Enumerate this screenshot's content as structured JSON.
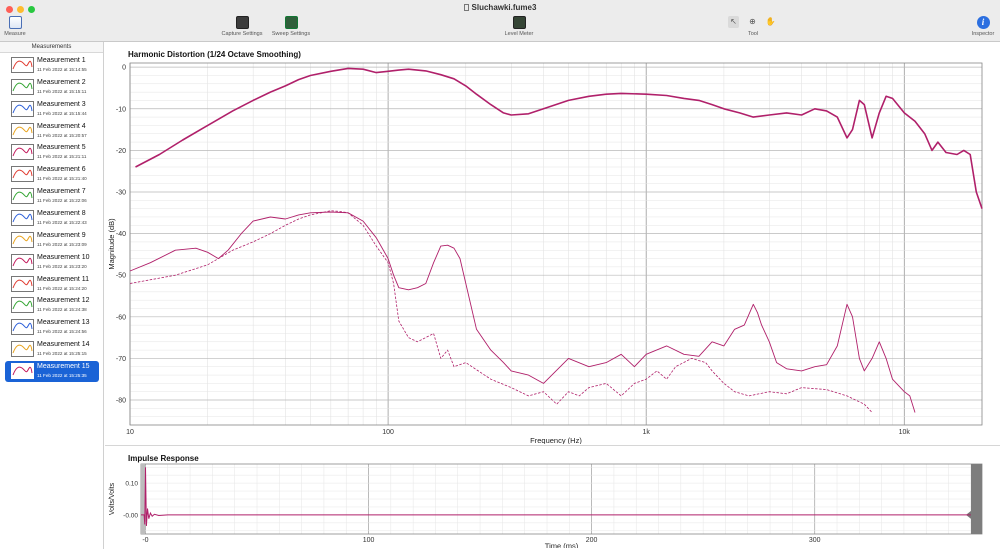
{
  "window": {
    "title": "Sluchawki.fume3"
  },
  "toolbar": {
    "measure_label": "Measure",
    "capture_settings_label": "Capture Settings",
    "sweep_settings_label": "Sweep Settings",
    "level_meter_label": "Level Meter",
    "tool_label": "Tool",
    "inspector_label": "Inspector",
    "colors": {
      "close": "#fe5f57",
      "minimize": "#febc2e",
      "zoom": "#28c840",
      "accent": "#1a63d6"
    }
  },
  "sidebar": {
    "header": "Measurements",
    "items": [
      {
        "name": "Measurement 1",
        "date": "11 Feb 2022 at 15:14:55",
        "color": "#e03a2f"
      },
      {
        "name": "Measurement 2",
        "date": "11 Feb 2022 at 15:15:11",
        "color": "#33a532"
      },
      {
        "name": "Measurement 3",
        "date": "11 Feb 2022 at 15:15:44",
        "color": "#2b5ed8"
      },
      {
        "name": "Measurement 4",
        "date": "11 Feb 2022 at 15:20:57",
        "color": "#e8a21b"
      },
      {
        "name": "Measurement 5",
        "date": "11 Feb 2022 at 15:21:11",
        "color": "#c2185b"
      },
      {
        "name": "Measurement 6",
        "date": "11 Feb 2022 at 15:21:40",
        "color": "#e03a2f"
      },
      {
        "name": "Measurement 7",
        "date": "11 Feb 2022 at 15:22:06",
        "color": "#33a532"
      },
      {
        "name": "Measurement 8",
        "date": "11 Feb 2022 at 15:22:43",
        "color": "#2b5ed8"
      },
      {
        "name": "Measurement 9",
        "date": "11 Feb 2022 at 15:23:09",
        "color": "#e8a21b"
      },
      {
        "name": "Measurement 10",
        "date": "11 Feb 2022 at 15:23:20",
        "color": "#c2185b"
      },
      {
        "name": "Measurement 11",
        "date": "11 Feb 2022 at 15:24:20",
        "color": "#e03a2f"
      },
      {
        "name": "Measurement 12",
        "date": "11 Feb 2022 at 15:24:38",
        "color": "#33a532"
      },
      {
        "name": "Measurement 13",
        "date": "11 Feb 2022 at 15:24:56",
        "color": "#2b5ed8"
      },
      {
        "name": "Measurement 14",
        "date": "11 Feb 2022 at 15:25:15",
        "color": "#e8a21b"
      },
      {
        "name": "Measurement 15",
        "date": "11 Feb 2022 at 15:25:35",
        "color": "#c2185b",
        "selected": true
      }
    ]
  },
  "harmonic": {
    "title": "Harmonic Distortion (1/24 Octave Smoothing)",
    "xlabel": "Frequency (Hz)",
    "ylabel": "Magnitude (dB)",
    "curve_color": "#b0206a"
  },
  "impulse": {
    "title": "Impulse Response",
    "xlabel": "Time (ms)",
    "ylabel": "Volts/Volts"
  },
  "chart_data": [
    {
      "type": "line",
      "title": "Harmonic Distortion (1/24 Octave Smoothing)",
      "xlabel": "Frequency (Hz)",
      "ylabel": "Magnitude (dB)",
      "xscale": "log",
      "xlim": [
        10,
        20000
      ],
      "ylim": [
        -86,
        1
      ],
      "xticks": [
        {
          "v": 10,
          "label": "10"
        },
        {
          "v": 100,
          "label": "100"
        },
        {
          "v": 1000,
          "label": "1k"
        },
        {
          "v": 10000,
          "label": "10k"
        }
      ],
      "yticks": [
        0,
        -10,
        -20,
        -30,
        -40,
        -50,
        -60,
        -70,
        -80
      ],
      "grid": true,
      "series": [
        {
          "style": "solid",
          "width": 1.6,
          "points": [
            [
              10.5,
              -24
            ],
            [
              13,
              -21
            ],
            [
              16,
              -17.5
            ],
            [
              20,
              -14
            ],
            [
              25,
              -10.5
            ],
            [
              30,
              -8
            ],
            [
              35,
              -6
            ],
            [
              40,
              -4.5
            ],
            [
              45,
              -3
            ],
            [
              50,
              -2
            ],
            [
              60,
              -1
            ],
            [
              70,
              -0.3
            ],
            [
              80,
              -0.5
            ],
            [
              90,
              -1.3
            ],
            [
              100,
              -1
            ],
            [
              110,
              -0.7
            ],
            [
              120,
              -0.5
            ],
            [
              140,
              -0.9
            ],
            [
              160,
              -1.8
            ],
            [
              180,
              -2.8
            ],
            [
              200,
              -4.5
            ],
            [
              220,
              -6.5
            ],
            [
              250,
              -9
            ],
            [
              280,
              -11
            ],
            [
              300,
              -11.5
            ],
            [
              350,
              -11.2
            ],
            [
              400,
              -10
            ],
            [
              500,
              -8
            ],
            [
              600,
              -7
            ],
            [
              700,
              -6.5
            ],
            [
              800,
              -6.3
            ],
            [
              1000,
              -6.5
            ],
            [
              1200,
              -6.8
            ],
            [
              1400,
              -7.5
            ],
            [
              1600,
              -8
            ],
            [
              1800,
              -9
            ],
            [
              2000,
              -10
            ],
            [
              2300,
              -11
            ],
            [
              2600,
              -12
            ],
            [
              3000,
              -11.5
            ],
            [
              3500,
              -11
            ],
            [
              4000,
              -11.5
            ],
            [
              4500,
              -10
            ],
            [
              5000,
              -10.5
            ],
            [
              5500,
              -12
            ],
            [
              6000,
              -17
            ],
            [
              6300,
              -15
            ],
            [
              6700,
              -8
            ],
            [
              7000,
              -9
            ],
            [
              7500,
              -17
            ],
            [
              8000,
              -11
            ],
            [
              8500,
              -7
            ],
            [
              9000,
              -7.5
            ],
            [
              10000,
              -11
            ],
            [
              11000,
              -13
            ],
            [
              12000,
              -16
            ],
            [
              12800,
              -20
            ],
            [
              13500,
              -18
            ],
            [
              14500,
              -20.5
            ],
            [
              16000,
              -21
            ],
            [
              17000,
              -20
            ],
            [
              18000,
              -21
            ],
            [
              19000,
              -30
            ],
            [
              20000,
              -34
            ]
          ]
        },
        {
          "style": "solid",
          "width": 0.9,
          "points": [
            [
              10,
              -49
            ],
            [
              12,
              -47
            ],
            [
              15,
              -44
            ],
            [
              18,
              -43.5
            ],
            [
              20,
              -44.5
            ],
            [
              22,
              -46
            ],
            [
              24,
              -44
            ],
            [
              27,
              -40
            ],
            [
              30,
              -37
            ],
            [
              35,
              -36
            ],
            [
              40,
              -36.5
            ],
            [
              45,
              -35.5
            ],
            [
              50,
              -35
            ],
            [
              60,
              -34.8
            ],
            [
              70,
              -35
            ],
            [
              80,
              -37
            ],
            [
              90,
              -41
            ],
            [
              100,
              -46
            ],
            [
              105,
              -50
            ],
            [
              110,
              -53
            ],
            [
              120,
              -53.5
            ],
            [
              130,
              -53
            ],
            [
              140,
              -52
            ],
            [
              150,
              -47
            ],
            [
              160,
              -43
            ],
            [
              170,
              -42.8
            ],
            [
              180,
              -43.5
            ],
            [
              190,
              -46
            ],
            [
              200,
              -52
            ],
            [
              220,
              -63
            ],
            [
              250,
              -68
            ],
            [
              280,
              -71
            ],
            [
              300,
              -73
            ],
            [
              350,
              -74
            ],
            [
              400,
              -76
            ],
            [
              500,
              -70
            ],
            [
              600,
              -72
            ],
            [
              700,
              -71
            ],
            [
              800,
              -69
            ],
            [
              900,
              -72
            ],
            [
              1000,
              -69
            ],
            [
              1200,
              -67
            ],
            [
              1400,
              -69
            ],
            [
              1600,
              -69.5
            ],
            [
              1800,
              -66
            ],
            [
              2000,
              -67
            ],
            [
              2200,
              -63
            ],
            [
              2400,
              -62
            ],
            [
              2600,
              -57
            ],
            [
              2700,
              -59
            ],
            [
              2800,
              -62
            ],
            [
              3000,
              -66
            ],
            [
              3200,
              -71
            ],
            [
              3500,
              -72.5
            ],
            [
              4000,
              -73
            ],
            [
              4500,
              -72
            ],
            [
              5000,
              -71.5
            ],
            [
              5500,
              -67
            ],
            [
              6000,
              -57
            ],
            [
              6300,
              -60
            ],
            [
              6700,
              -70
            ],
            [
              7000,
              -73
            ],
            [
              7500,
              -70
            ],
            [
              8000,
              -66
            ],
            [
              8500,
              -70
            ],
            [
              9000,
              -75
            ],
            [
              10000,
              -78
            ],
            [
              10500,
              -79
            ],
            [
              11000,
              -83
            ]
          ]
        },
        {
          "style": "dashed",
          "width": 0.8,
          "points": [
            [
              10,
              -52
            ],
            [
              15,
              -50
            ],
            [
              20,
              -47.5
            ],
            [
              25,
              -44
            ],
            [
              30,
              -42
            ],
            [
              35,
              -40
            ],
            [
              40,
              -38
            ],
            [
              45,
              -36.5
            ],
            [
              50,
              -35.5
            ],
            [
              55,
              -35
            ],
            [
              60,
              -34.5
            ],
            [
              65,
              -34.7
            ],
            [
              70,
              -35
            ],
            [
              80,
              -38
            ],
            [
              90,
              -43
            ],
            [
              100,
              -47
            ],
            [
              105,
              -52
            ],
            [
              110,
              -61
            ],
            [
              120,
              -65
            ],
            [
              130,
              -66
            ],
            [
              150,
              -64
            ],
            [
              160,
              -70
            ],
            [
              170,
              -68
            ],
            [
              180,
              -72
            ],
            [
              200,
              -71
            ],
            [
              250,
              -75
            ],
            [
              300,
              -77
            ],
            [
              350,
              -79
            ],
            [
              400,
              -78
            ],
            [
              450,
              -81
            ],
            [
              500,
              -78
            ],
            [
              550,
              -79
            ],
            [
              600,
              -77
            ],
            [
              700,
              -76
            ],
            [
              800,
              -79
            ],
            [
              900,
              -76
            ],
            [
              1000,
              -75
            ],
            [
              1100,
              -73
            ],
            [
              1200,
              -75
            ],
            [
              1300,
              -72
            ],
            [
              1500,
              -70
            ],
            [
              1700,
              -71
            ],
            [
              1800,
              -73
            ],
            [
              2000,
              -76
            ],
            [
              2200,
              -78
            ],
            [
              2500,
              -79
            ],
            [
              3000,
              -78
            ],
            [
              3500,
              -78.5
            ],
            [
              4000,
              -77
            ],
            [
              5000,
              -77.5
            ],
            [
              6000,
              -79
            ],
            [
              7000,
              -81
            ],
            [
              7500,
              -83
            ]
          ]
        }
      ]
    },
    {
      "type": "line",
      "title": "Impulse Response",
      "xlabel": "Time (ms)",
      "ylabel": "Volts/Volts",
      "xlim": [
        -2,
        375
      ],
      "ylim": [
        -0.06,
        0.16
      ],
      "xticks": [
        {
          "v": 0,
          "label": "-0"
        },
        {
          "v": 100,
          "label": "100"
        },
        {
          "v": 200,
          "label": "200"
        },
        {
          "v": 300,
          "label": "300"
        }
      ],
      "yticks": [
        {
          "v": 0.1,
          "label": "0.10"
        },
        {
          "v": 0,
          "label": "-0.00"
        }
      ],
      "grid": true,
      "series": [
        {
          "points": [
            [
              -2,
              0
            ],
            [
              -0.6,
              0
            ],
            [
              -0.3,
              -0.03
            ],
            [
              0,
              0.15
            ],
            [
              0.4,
              -0.035
            ],
            [
              0.9,
              0.02
            ],
            [
              1.5,
              -0.012
            ],
            [
              2.2,
              0.006
            ],
            [
              3,
              -0.004
            ],
            [
              4,
              0.002
            ],
            [
              6,
              -0.002
            ],
            [
              10,
              0.0
            ],
            [
              370,
              0.0
            ]
          ]
        }
      ]
    }
  ]
}
